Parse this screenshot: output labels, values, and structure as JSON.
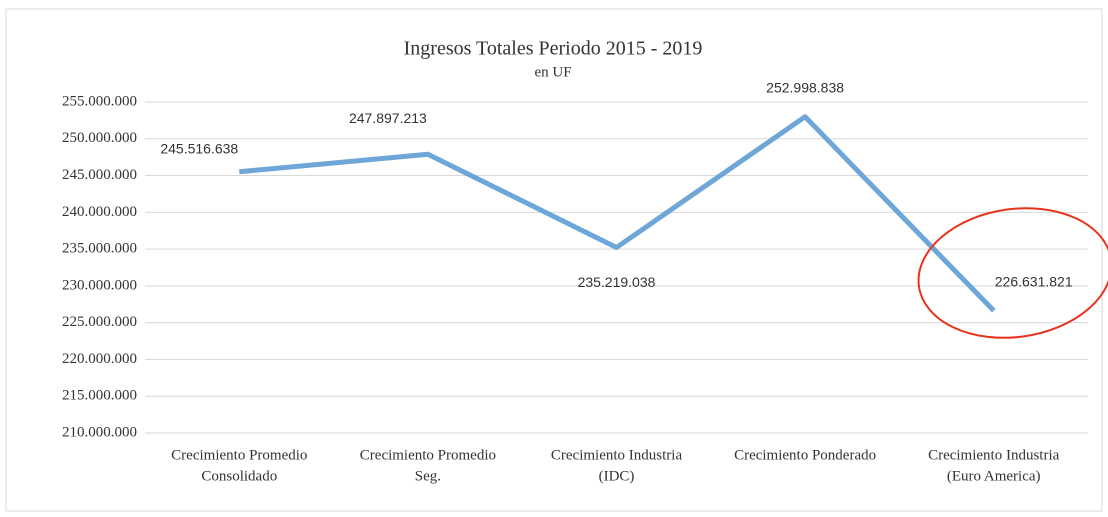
{
  "chart_data": {
    "type": "line",
    "title": "Ingresos Totales Periodo 2015 - 2019",
    "subtitle": "en UF",
    "categories": [
      [
        "Crecimiento Promedio",
        "Consolidado"
      ],
      [
        "Crecimiento Promedio",
        "Seg."
      ],
      [
        "Crecimiento Industria",
        "(IDC)"
      ],
      [
        "Crecimiento Ponderado"
      ],
      [
        "Crecimiento Industria",
        "(Euro America)"
      ]
    ],
    "series": [
      {
        "color": "#6ea6d8",
        "values": [
          245516638,
          247897213,
          235219038,
          252998838,
          226631821
        ],
        "value_labels": [
          "245.516.638",
          "247.897.213",
          "235.219.038",
          "252.998.838",
          "226.631.821"
        ]
      }
    ],
    "ylim": [
      210000000,
      255000000
    ],
    "yticks": [
      {
        "value": 210000000,
        "label": "210.000.000"
      },
      {
        "value": 215000000,
        "label": "215.000.000"
      },
      {
        "value": 220000000,
        "label": "220.000.000"
      },
      {
        "value": 225000000,
        "label": "225.000.000"
      },
      {
        "value": 230000000,
        "label": "230.000.000"
      },
      {
        "value": 235000000,
        "label": "235.000.000"
      },
      {
        "value": 240000000,
        "label": "240.000.000"
      },
      {
        "value": 245000000,
        "label": "245.000.000"
      },
      {
        "value": 250000000,
        "label": "250.000.000"
      },
      {
        "value": 255000000,
        "label": "255.000.000"
      }
    ],
    "grid": true
  }
}
